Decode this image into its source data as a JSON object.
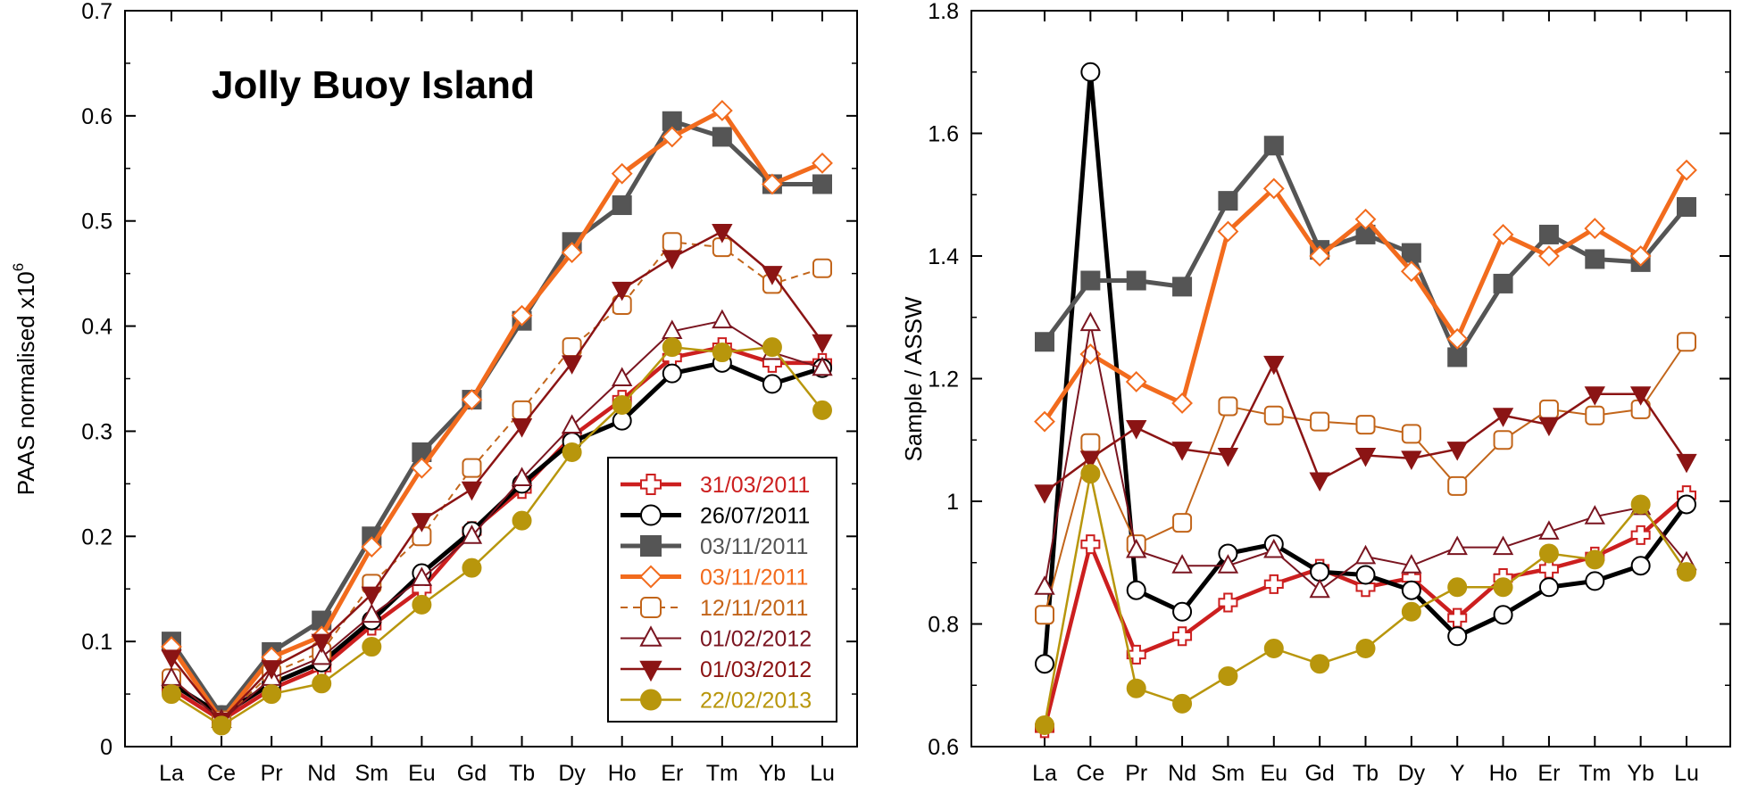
{
  "chart_data": [
    {
      "type": "line",
      "title": "Jolly Buoy Island",
      "xlabel": "",
      "ylabel": "PAAS normalised x10",
      "ylabel_sup": "6",
      "ylim": [
        0,
        0.7
      ],
      "yticks": [
        0,
        0.1,
        0.2,
        0.3,
        0.4,
        0.5,
        0.6,
        0.7
      ],
      "ytick_labels": [
        "0",
        "0.1",
        "0.2",
        "0.3",
        "0.4",
        "0.5",
        "0.6",
        "0.7"
      ],
      "categories": [
        "La",
        "Ce",
        "Pr",
        "Nd",
        "Sm",
        "Eu",
        "Gd",
        "Tb",
        "Dy",
        "Ho",
        "Er",
        "Tm",
        "Yb",
        "Lu"
      ],
      "legend_position": "bottom-right",
      "series": [
        {
          "name": "31/03/2011",
          "color": "#cc1f1f",
          "marker": "cross",
          "style": "solid",
          "values": [
            0.055,
            0.025,
            0.055,
            0.075,
            0.115,
            0.15,
            0.205,
            0.245,
            0.295,
            0.33,
            0.37,
            0.38,
            0.365,
            0.365
          ]
        },
        {
          "name": "26/07/2011",
          "color": "#000000",
          "marker": "circle-open",
          "style": "solid",
          "values": [
            0.06,
            0.03,
            0.06,
            0.08,
            0.12,
            0.165,
            0.205,
            0.25,
            0.29,
            0.31,
            0.355,
            0.365,
            0.345,
            0.36
          ]
        },
        {
          "name": "03/11/2011",
          "color": "#555555",
          "marker": "square-filled",
          "style": "solid",
          "values": [
            0.1,
            0.03,
            0.09,
            0.12,
            0.2,
            0.28,
            0.33,
            0.405,
            0.48,
            0.515,
            0.595,
            0.58,
            0.535,
            0.535
          ]
        },
        {
          "name": "03/11/2011",
          "color": "#f26b1d",
          "marker": "diamond-open",
          "style": "solid",
          "values": [
            0.095,
            0.025,
            0.085,
            0.105,
            0.19,
            0.265,
            0.33,
            0.41,
            0.47,
            0.545,
            0.58,
            0.605,
            0.535,
            0.555
          ]
        },
        {
          "name": "12/11/2011",
          "color": "#c2651a",
          "marker": "square-round-open",
          "style": "dashed",
          "values": [
            0.065,
            0.025,
            0.07,
            0.09,
            0.155,
            0.2,
            0.265,
            0.32,
            0.38,
            0.42,
            0.48,
            0.475,
            0.44,
            0.455
          ]
        },
        {
          "name": "01/02/2012",
          "color": "#7a1520",
          "marker": "triangle-up-open",
          "style": "solid",
          "values": [
            0.065,
            0.025,
            0.065,
            0.085,
            0.125,
            0.16,
            0.2,
            0.255,
            0.305,
            0.35,
            0.395,
            0.405,
            0.375,
            0.36
          ]
        },
        {
          "name": "01/03/2012",
          "color": "#8b1414",
          "marker": "triangle-down-filled",
          "style": "solid",
          "values": [
            0.085,
            0.025,
            0.075,
            0.1,
            0.145,
            0.215,
            0.245,
            0.305,
            0.365,
            0.435,
            0.465,
            0.49,
            0.45,
            0.385
          ]
        },
        {
          "name": "22/02/2013",
          "color": "#b8960c",
          "marker": "circle-filled",
          "style": "solid",
          "values": [
            0.05,
            0.02,
            0.05,
            0.06,
            0.095,
            0.135,
            0.17,
            0.215,
            0.28,
            0.325,
            0.38,
            0.375,
            0.38,
            0.32
          ]
        }
      ]
    },
    {
      "type": "line",
      "title": "",
      "xlabel": "",
      "ylabel": "Sample / ASSW",
      "ylim": [
        0.6,
        1.8
      ],
      "yticks": [
        0.6,
        0.8,
        1.0,
        1.2,
        1.4,
        1.6,
        1.8
      ],
      "ytick_labels": [
        "0.6",
        "0.8",
        "1",
        "1.2",
        "1.4",
        "1.6",
        "1.8"
      ],
      "categories": [
        "La",
        "Ce",
        "Pr",
        "Nd",
        "Sm",
        "Eu",
        "Gd",
        "Tb",
        "Dy",
        "Y",
        "Ho",
        "Er",
        "Tm",
        "Yb",
        "Lu"
      ],
      "series": [
        {
          "name": "31/03/2011",
          "color": "#cc1f1f",
          "marker": "cross",
          "style": "solid",
          "values": [
            0.63,
            0.93,
            0.75,
            0.78,
            0.835,
            0.865,
            0.89,
            0.86,
            0.875,
            0.81,
            0.875,
            0.89,
            0.91,
            0.945,
            1.01
          ]
        },
        {
          "name": "26/07/2011",
          "color": "#000000",
          "marker": "circle-open",
          "style": "solid",
          "values": [
            0.735,
            1.7,
            0.855,
            0.82,
            0.915,
            0.93,
            0.885,
            0.88,
            0.855,
            0.78,
            0.815,
            0.86,
            0.87,
            0.895,
            0.995
          ]
        },
        {
          "name": "03/11/2011",
          "color": "#555555",
          "marker": "square-filled",
          "style": "solid",
          "values": [
            1.26,
            1.36,
            1.36,
            1.35,
            1.49,
            1.58,
            1.41,
            1.435,
            1.405,
            1.235,
            1.355,
            1.435,
            1.395,
            1.39,
            1.48
          ]
        },
        {
          "name": "03/11/2011",
          "color": "#f26b1d",
          "marker": "diamond-open",
          "style": "solid",
          "values": [
            1.13,
            1.24,
            1.195,
            1.16,
            1.44,
            1.51,
            1.4,
            1.46,
            1.375,
            1.265,
            1.435,
            1.4,
            1.445,
            1.4,
            1.54
          ]
        },
        {
          "name": "12/11/2011",
          "color": "#c2651a",
          "marker": "square-round-open",
          "style": "solid",
          "values": [
            0.815,
            1.095,
            0.93,
            0.965,
            1.155,
            1.14,
            1.13,
            1.125,
            1.11,
            1.025,
            1.1,
            1.15,
            1.14,
            1.15,
            1.26
          ]
        },
        {
          "name": "01/02/2012",
          "color": "#7a1520",
          "marker": "triangle-up-open",
          "style": "solid",
          "values": [
            0.86,
            1.29,
            0.92,
            0.895,
            0.895,
            0.92,
            0.855,
            0.91,
            0.895,
            0.925,
            0.925,
            0.95,
            0.975,
            0.99,
            0.9
          ]
        },
        {
          "name": "01/03/2012",
          "color": "#8b1414",
          "marker": "triangle-down-filled",
          "style": "solid",
          "values": [
            1.015,
            1.07,
            1.12,
            1.085,
            1.075,
            1.225,
            1.035,
            1.075,
            1.07,
            1.085,
            1.14,
            1.125,
            1.175,
            1.175,
            1.065
          ]
        },
        {
          "name": "22/02/2013",
          "color": "#b8960c",
          "marker": "circle-filled",
          "style": "solid",
          "values": [
            0.635,
            1.045,
            0.695,
            0.67,
            0.715,
            0.76,
            0.735,
            0.76,
            0.82,
            0.86,
            0.86,
            0.915,
            0.905,
            0.995,
            0.885
          ]
        }
      ]
    }
  ]
}
